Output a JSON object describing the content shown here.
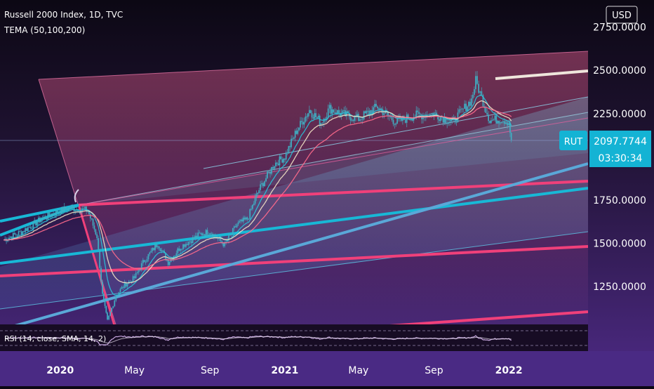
{
  "header": {
    "title": "Russell 2000 Index, 1D, TVC",
    "indicator": "TEMA (50,100,200)",
    "currency": "USD"
  },
  "price_badge": {
    "symbol": "RUT",
    "price": "2097.7744",
    "countdown": "03:30:34"
  },
  "rsi": {
    "label": "RSI (14, close, SMA, 14, 2)"
  },
  "colors": {
    "background_top": "#0c0814",
    "background_bottom": "#4e2a86",
    "candles": "#3fb0c4",
    "cyan_line": "#18b8d6",
    "pink_line": "#f0407a",
    "tema_50": "#29c3d8",
    "tema_100": "#f2e2c4",
    "tema_200": "#ff6a8c",
    "badge": "#14b3d4"
  },
  "chart_data": {
    "type": "line",
    "title": "Russell 2000 Index, 1D, TVC",
    "x_tick_labels": [
      "2020",
      "May",
      "Sep",
      "2021",
      "May",
      "Sep",
      "2022"
    ],
    "y_tick_labels": [
      "2750.0000",
      "2500.0000",
      "2250.0000",
      "1750.0000",
      "1500.0000",
      "1250.0000"
    ],
    "y_ticks": [
      2750,
      2500,
      2250,
      1750,
      1500,
      1250
    ],
    "ylim": [
      1030,
      2800
    ],
    "xlim": [
      "2019-09-25",
      "2022-05-10"
    ],
    "grid": false,
    "last_price": 2097.7744,
    "series": [
      {
        "name": "Russell 2000 Index",
        "x": [
          "2019-10-01",
          "2019-11-01",
          "2019-12-01",
          "2020-01-01",
          "2020-01-17",
          "2020-02-15",
          "2020-03-01",
          "2020-03-10",
          "2020-03-18",
          "2020-04-01",
          "2020-04-15",
          "2020-05-01",
          "2020-05-15",
          "2020-06-08",
          "2020-06-25",
          "2020-07-15",
          "2020-08-15",
          "2020-09-01",
          "2020-09-25",
          "2020-10-15",
          "2020-11-01",
          "2020-11-20",
          "2020-12-15",
          "2021-01-01",
          "2021-01-20",
          "2021-02-10",
          "2021-03-01",
          "2021-03-15",
          "2021-04-01",
          "2021-05-01",
          "2021-06-01",
          "2021-07-01",
          "2021-08-01",
          "2021-09-01",
          "2021-10-01",
          "2021-11-01",
          "2021-11-08",
          "2021-11-20",
          "2021-12-01",
          "2021-12-20",
          "2022-01-01",
          "2022-01-05"
        ],
        "values": [
          1520,
          1570,
          1640,
          1690,
          1705,
          1690,
          1540,
          1200,
          1050,
          1200,
          1260,
          1300,
          1390,
          1500,
          1390,
          1480,
          1550,
          1570,
          1490,
          1610,
          1640,
          1810,
          1960,
          2000,
          2150,
          2270,
          2200,
          2280,
          2250,
          2220,
          2290,
          2200,
          2240,
          2250,
          2200,
          2330,
          2440,
          2320,
          2210,
          2220,
          2200,
          2098
        ]
      }
    ]
  }
}
